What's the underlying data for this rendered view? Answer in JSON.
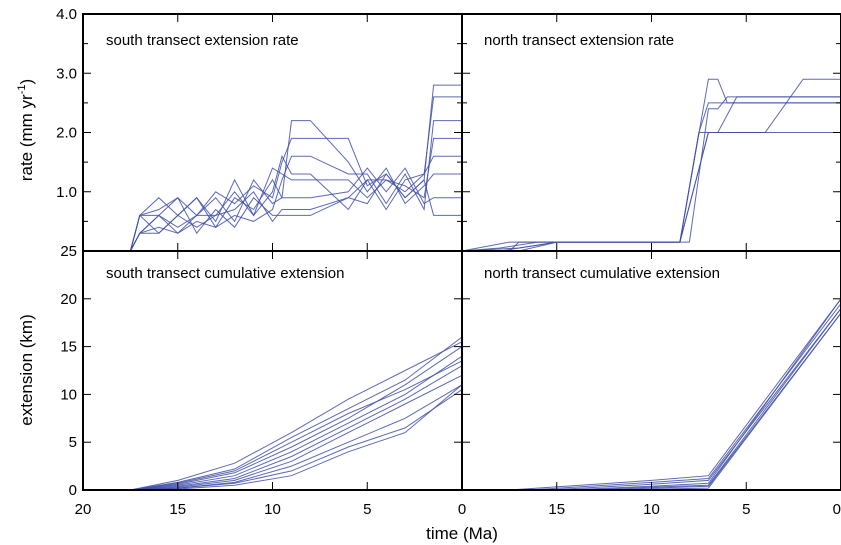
{
  "xlabel": "time (Ma)",
  "chart_data": [
    {
      "type": "line",
      "title": "south transect extension rate",
      "ylabel": "rate (mm yr-1)",
      "ylabel_main": "rate (mm yr",
      "ylabel_sup": "-1",
      "ylabel_tail": ")",
      "xlim": [
        20,
        0
      ],
      "ylim": [
        0,
        4.0
      ],
      "yticks": [
        1.0,
        2.0,
        3.0,
        4.0
      ],
      "ytick_labels": [
        "1.0",
        "2.0",
        "3.0",
        "4.0"
      ],
      "line_color": "#3f4fa8",
      "series": [
        {
          "x": [
            17.5,
            17.0,
            16.0,
            15.0,
            14.0,
            13.0,
            12.0,
            11.0,
            10.0,
            9.5,
            9.0,
            8.0,
            6.0,
            5.0,
            4.0,
            3.0,
            2.0,
            1.5,
            0.0
          ],
          "y": [
            0,
            0.6,
            0.7,
            0.9,
            0.6,
            1.0,
            0.8,
            1.1,
            0.9,
            1.5,
            1.9,
            1.9,
            1.9,
            1.1,
            1.3,
            0.9,
            1.2,
            2.8,
            2.8
          ]
        },
        {
          "x": [
            17.5,
            17.0,
            16.0,
            15.0,
            14.0,
            13.0,
            12.0,
            11.0,
            10.0,
            9.5,
            9.0,
            8.0,
            6.0,
            5.0,
            4.0,
            3.0,
            2.0,
            1.5,
            0.0
          ],
          "y": [
            0,
            0.3,
            0.4,
            0.3,
            0.5,
            0.4,
            0.6,
            0.5,
            0.7,
            1.2,
            1.6,
            1.6,
            1.3,
            1.3,
            0.8,
            1.3,
            0.7,
            2.2,
            2.2
          ]
        },
        {
          "x": [
            17.5,
            17.0,
            16.0,
            15.0,
            14.0,
            13.0,
            12.0,
            11.0,
            10.0,
            9.5,
            9.0,
            8.0,
            6.0,
            5.0,
            4.0,
            3.0,
            2.0,
            1.5,
            0.0
          ],
          "y": [
            0,
            0.6,
            0.3,
            0.6,
            0.9,
            0.5,
            1.2,
            0.6,
            1.4,
            1.3,
            1.2,
            1.2,
            1.2,
            0.9,
            1.2,
            1.1,
            0.9,
            1.9,
            1.9
          ]
        },
        {
          "x": [
            17.5,
            17.0,
            16.0,
            15.0,
            14.0,
            13.0,
            12.0,
            11.0,
            10.0,
            9.5,
            9.0,
            8.0,
            6.0,
            5.0,
            4.0,
            3.0,
            2.0,
            1.5,
            0.0
          ],
          "y": [
            0,
            0.3,
            0.6,
            0.9,
            0.3,
            0.7,
            0.4,
            0.9,
            0.6,
            0.6,
            0.6,
            0.6,
            0.9,
            1.2,
            0.7,
            1.2,
            1.3,
            1.6,
            1.6
          ]
        },
        {
          "x": [
            17.5,
            17.0,
            16.0,
            15.0,
            14.0,
            13.0,
            12.0,
            11.0,
            10.0,
            9.5,
            9.0,
            8.0,
            6.0,
            5.0,
            4.0,
            3.0,
            2.0,
            1.5,
            0.0
          ],
          "y": [
            0,
            0.6,
            0.6,
            0.4,
            0.6,
            0.9,
            0.5,
            1.2,
            0.8,
            0.9,
            2.2,
            2.2,
            1.5,
            1.0,
            1.4,
            0.8,
            1.1,
            1.3,
            1.3
          ]
        },
        {
          "x": [
            17.5,
            17.0,
            16.0,
            15.0,
            14.0,
            13.0,
            12.0,
            11.0,
            10.0,
            9.5,
            9.0,
            8.0,
            6.0,
            5.0,
            4.0,
            3.0,
            2.0,
            1.5,
            0.0
          ],
          "y": [
            0,
            0.3,
            0.3,
            0.6,
            0.9,
            0.4,
            0.9,
            0.7,
            1.2,
            0.9,
            0.9,
            0.9,
            1.0,
            1.4,
            1.0,
            1.4,
            0.8,
            0.9,
            0.9
          ]
        },
        {
          "x": [
            17.5,
            17.0,
            16.0,
            15.0,
            14.0,
            13.0,
            12.0,
            11.0,
            10.0,
            9.5,
            9.0,
            8.0,
            6.0,
            5.0,
            4.0,
            3.0,
            2.0,
            1.5,
            0.0
          ],
          "y": [
            0,
            0.6,
            0.9,
            0.6,
            0.4,
            0.6,
            1.0,
            0.6,
            1.0,
            1.6,
            1.3,
            1.3,
            0.7,
            1.2,
            1.2,
            1.0,
            1.3,
            2.6,
            2.6
          ]
        },
        {
          "x": [
            17.5,
            17.0,
            16.0,
            15.0,
            14.0,
            13.0,
            12.0,
            11.0,
            10.0,
            9.5,
            9.0,
            8.0,
            6.0,
            5.0,
            4.0,
            3.0,
            2.0,
            1.5,
            0.0
          ],
          "y": [
            0,
            0.3,
            0.6,
            0.3,
            0.6,
            0.6,
            0.7,
            1.0,
            0.5,
            0.7,
            0.7,
            0.7,
            0.9,
            0.8,
            1.3,
            0.9,
            1.2,
            0.6,
            0.6
          ]
        }
      ]
    },
    {
      "type": "line",
      "title": "north transect extension rate",
      "xlim": [
        20,
        0
      ],
      "ylim": [
        0,
        4.0
      ],
      "line_color": "#3f4fa8",
      "series": [
        {
          "x": [
            20,
            17.5,
            17.0,
            14.0,
            10.0,
            8.5,
            7.5,
            7.0,
            6.0,
            4.0,
            2.0,
            0.0
          ],
          "y": [
            0,
            0,
            0.15,
            0.15,
            0.15,
            0.15,
            2.0,
            2.5,
            2.5,
            2.5,
            2.5,
            2.5
          ]
        },
        {
          "x": [
            20,
            17.5,
            16.0,
            13.0,
            10.0,
            8.5,
            7.0,
            6.5,
            6.0,
            4.0,
            2.0,
            0.0
          ],
          "y": [
            0,
            0.15,
            0.15,
            0.15,
            0.15,
            0.15,
            2.9,
            2.9,
            2.5,
            2.5,
            2.5,
            2.5
          ]
        },
        {
          "x": [
            20,
            18.0,
            16.0,
            13.0,
            10.0,
            8.5,
            7.0,
            6.5,
            6.0,
            4.0,
            2.0,
            0.0
          ],
          "y": [
            0,
            0.05,
            0.15,
            0.15,
            0.15,
            0.15,
            2.0,
            2.0,
            2.0,
            2.0,
            2.9,
            2.9
          ]
        },
        {
          "x": [
            20,
            18.0,
            15.0,
            12.0,
            10.0,
            8.0,
            7.0,
            6.5,
            6.0,
            4.0,
            2.0,
            0.0
          ],
          "y": [
            0,
            0.0,
            0.15,
            0.15,
            0.15,
            0.15,
            2.4,
            2.4,
            2.6,
            2.6,
            2.6,
            2.6
          ]
        },
        {
          "x": [
            20,
            17.0,
            15.0,
            12.0,
            10.0,
            8.5,
            7.5,
            6.5,
            5.5,
            4.0,
            2.0,
            0.0
          ],
          "y": [
            0,
            0.0,
            0.15,
            0.15,
            0.15,
            0.15,
            2.0,
            2.0,
            2.6,
            2.6,
            2.6,
            2.6
          ]
        },
        {
          "x": [
            20,
            17.0,
            15.0,
            12.0,
            10.0,
            8.5,
            7.0,
            6.5,
            6.0,
            4.0,
            2.0,
            0.0
          ],
          "y": [
            0,
            0.05,
            0.15,
            0.15,
            0.15,
            0.15,
            2.0,
            2.0,
            2.0,
            2.0,
            2.0,
            2.0
          ]
        }
      ]
    },
    {
      "type": "line",
      "title": "south transect cumulative extension",
      "ylabel": "extension (km)",
      "xlim": [
        20,
        0
      ],
      "ylim": [
        0,
        25
      ],
      "yticks": [
        0,
        5,
        10,
        15,
        20,
        25
      ],
      "ytick_labels": [
        "0",
        "5",
        "10",
        "15",
        "20",
        "25"
      ],
      "line_color": "#3f4fa8",
      "series": [
        {
          "x": [
            17.5,
            15,
            12,
            9,
            6,
            3,
            0
          ],
          "y": [
            0,
            0.8,
            2.2,
            5.5,
            8.5,
            11.5,
            16
          ]
        },
        {
          "x": [
            17.5,
            15,
            12,
            9,
            6,
            3,
            0
          ],
          "y": [
            0,
            0.6,
            1.8,
            4.5,
            7.5,
            11.0,
            15
          ]
        },
        {
          "x": [
            17.5,
            15,
            12,
            9,
            6,
            3,
            0
          ],
          "y": [
            0,
            0.5,
            1.5,
            4.0,
            7.0,
            10.0,
            14
          ]
        },
        {
          "x": [
            17.5,
            15,
            12,
            9,
            6,
            3,
            0
          ],
          "y": [
            0,
            0.4,
            1.2,
            3.5,
            6.5,
            9.5,
            13
          ]
        },
        {
          "x": [
            17.5,
            15,
            12,
            9,
            6,
            3,
            0
          ],
          "y": [
            0,
            0.3,
            1.0,
            3.0,
            6.0,
            9.0,
            12
          ]
        },
        {
          "x": [
            17.5,
            15,
            12,
            9,
            6,
            3,
            0
          ],
          "y": [
            0,
            0.2,
            0.8,
            2.5,
            5.0,
            7.5,
            11
          ]
        },
        {
          "x": [
            17.5,
            15,
            12,
            9,
            6,
            3,
            0
          ],
          "y": [
            0,
            0.2,
            0.7,
            2.0,
            4.5,
            6.5,
            10.5
          ]
        },
        {
          "x": [
            17.5,
            15,
            12,
            9,
            6,
            3,
            0
          ],
          "y": [
            0,
            1.0,
            2.8,
            6.0,
            9.5,
            12.5,
            15.5
          ]
        },
        {
          "x": [
            17.5,
            15,
            12,
            9,
            6,
            3,
            0
          ],
          "y": [
            0,
            0.1,
            0.5,
            1.5,
            4.0,
            6.0,
            11
          ]
        },
        {
          "x": [
            17.5,
            15,
            12,
            9,
            6,
            3,
            0
          ],
          "y": [
            0,
            0.7,
            2.0,
            5.0,
            8.0,
            10.5,
            13.5
          ]
        }
      ]
    },
    {
      "type": "line",
      "title": "north transect cumulative extension",
      "xlim": [
        20,
        0
      ],
      "ylim": [
        0,
        25
      ],
      "line_color": "#3f4fa8",
      "series": [
        {
          "x": [
            17.5,
            10,
            7.0,
            0
          ],
          "y": [
            0,
            1.0,
            1.5,
            20
          ]
        },
        {
          "x": [
            16.5,
            10,
            7.0,
            0
          ],
          "y": [
            0,
            0.8,
            1.2,
            19.5
          ]
        },
        {
          "x": [
            15.5,
            10,
            7.0,
            0
          ],
          "y": [
            0,
            0.6,
            1.0,
            19
          ]
        },
        {
          "x": [
            14.5,
            10,
            7.0,
            0
          ],
          "y": [
            0,
            0.4,
            0.7,
            20
          ]
        },
        {
          "x": [
            13.5,
            10,
            7.0,
            0
          ],
          "y": [
            0,
            0.3,
            0.5,
            19
          ]
        },
        {
          "x": [
            12.5,
            10,
            7.0,
            0
          ],
          "y": [
            0,
            0.2,
            0.4,
            18.5
          ]
        },
        {
          "x": [
            11.5,
            9.5,
            7.0,
            0
          ],
          "y": [
            0,
            0.1,
            0.2,
            18.5
          ]
        }
      ]
    }
  ],
  "xaxis": {
    "ticks": [
      20,
      15,
      10,
      5,
      0
    ],
    "left_labels": [
      "20",
      "15",
      "10",
      "5",
      "0"
    ],
    "right_labels": [
      "15",
      "10",
      "5",
      "0"
    ]
  }
}
